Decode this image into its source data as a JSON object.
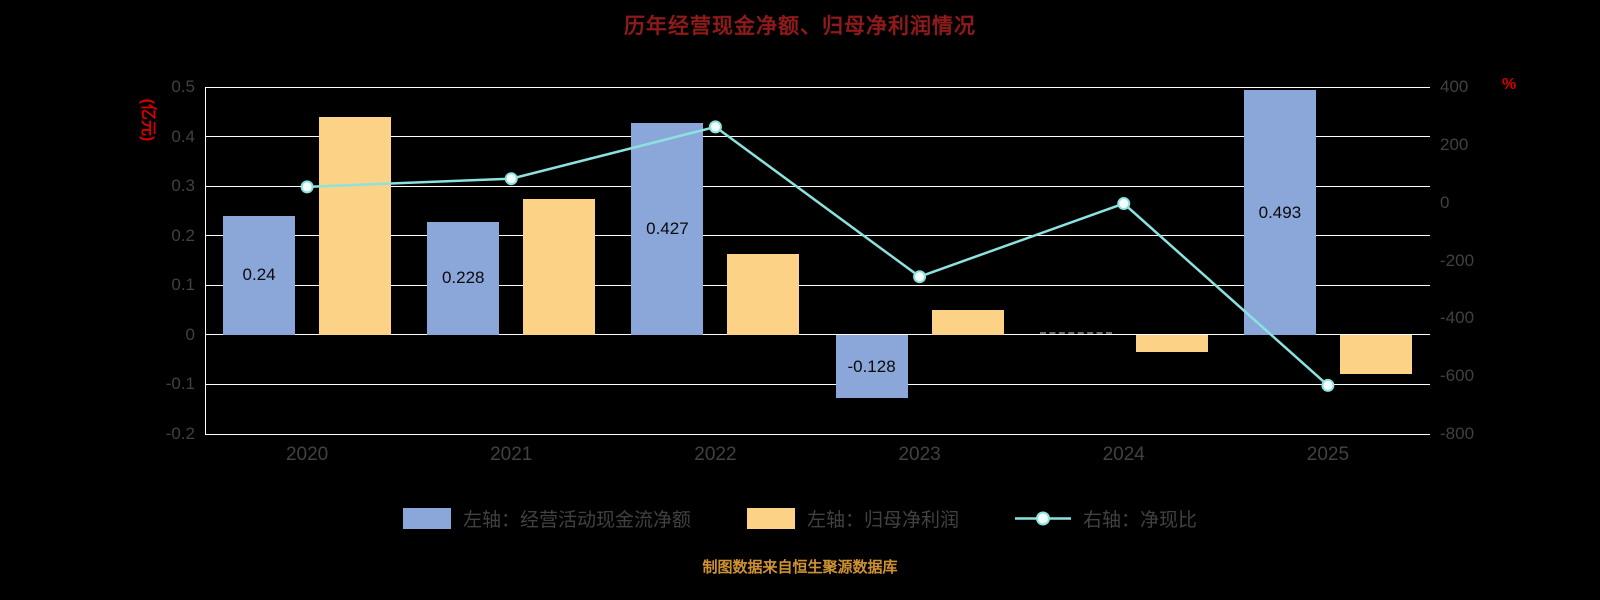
{
  "title": "历年经营现金净额、归母净利润情况",
  "caption": "制图数据来自恒生聚源数据库",
  "colors": {
    "background": "#000000",
    "grid": "#ffffff",
    "title": "#8f1a1a",
    "axis_unit": "#d60000",
    "tick_text": "#414141",
    "bar_label": "#0a0a0a",
    "cash_bar": "#8ba7d9",
    "profit_bar": "#fcd386",
    "ratio_line": "#8ce2de",
    "marker_fill": "#f4fffe",
    "caption": "#cf9232",
    "near_zero_dash": "#6e6e6e"
  },
  "chart_data": {
    "type": "bar+line combo",
    "title": "历年经营现金净额、归母净利润情况",
    "categories": [
      "2020",
      "2021",
      "2022",
      "2023",
      "2024",
      "2025"
    ],
    "series": [
      {
        "name": "左轴：经营活动现金流净额",
        "type": "bar",
        "axis": "left",
        "color": "#8ba7d9",
        "values": [
          0.24,
          0.228,
          0.427,
          -0.128,
          0.0005,
          0.493
        ],
        "labels": [
          "0.24",
          "0.228",
          "0.427",
          "-0.128",
          "",
          "0.493"
        ]
      },
      {
        "name": "左轴：归母净利润",
        "type": "bar",
        "axis": "left",
        "color": "#fcd386",
        "values": [
          0.44,
          0.275,
          0.163,
          0.05,
          -0.035,
          -0.078
        ],
        "labels": [
          "",
          "",
          "",
          "",
          "",
          ""
        ]
      },
      {
        "name": "右轴：净现比",
        "type": "line",
        "axis": "right",
        "color": "#8ce2de",
        "values": [
          54.5,
          82.9,
          262,
          -256,
          -3,
          -632
        ]
      }
    ],
    "left_axis": {
      "label": "(亿元)",
      "min": -0.2,
      "max": 0.5,
      "ticks": [
        "0.5",
        "0.4",
        "0.3",
        "0.2",
        "0.1",
        "0",
        "-0.1",
        "-0.2"
      ]
    },
    "right_axis": {
      "label": "%",
      "min": -800,
      "max": 400,
      "ticks": [
        "400",
        "200",
        "0",
        "-200",
        "-400",
        "-600",
        "-800"
      ]
    },
    "grid": true,
    "legend_position": "bottom"
  }
}
